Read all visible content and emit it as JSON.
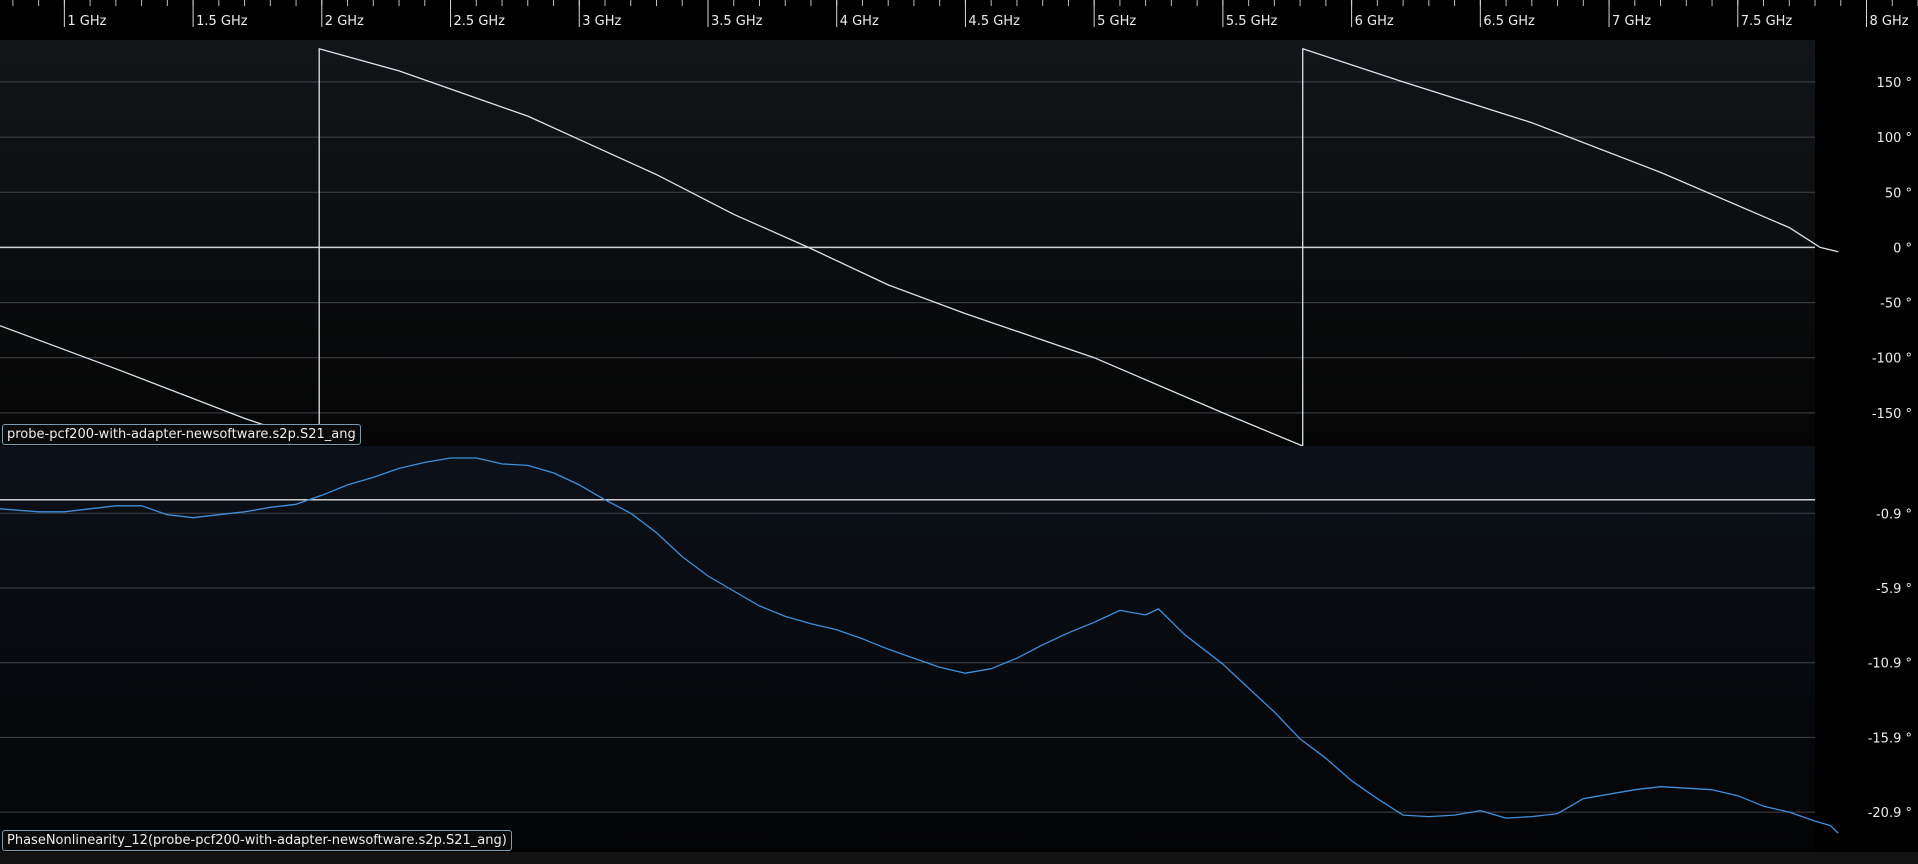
{
  "colors": {
    "background": "#000000",
    "panel1_top": "#121518",
    "panel1_bottom": "#050505",
    "panel2_top": "#0c1119",
    "panel2_bottom": "#030405",
    "gridline": "#3e434a",
    "reference_line": "#cfcfcf",
    "trace1": "#dbe3ea",
    "trace2": "#3f8fd8",
    "label_border": "#7a9ab0"
  },
  "chart_data": [
    {
      "type": "line",
      "name": "phase-panel",
      "trace_label": "probe-pcf200-with-adapter-newsoftware.s2p.S21_ang",
      "xlim": [
        0.75,
        8.2
      ],
      "ylim": [
        -180,
        188
      ],
      "x_ticks": [
        {
          "value": 1.0,
          "label": "1 GHz"
        },
        {
          "value": 1.5,
          "label": "1.5 GHz"
        },
        {
          "value": 2.0,
          "label": "2 GHz"
        },
        {
          "value": 2.5,
          "label": "2.5 GHz"
        },
        {
          "value": 3.0,
          "label": "3 GHz"
        },
        {
          "value": 3.5,
          "label": "3.5 GHz"
        },
        {
          "value": 4.0,
          "label": "4 GHz"
        },
        {
          "value": 4.5,
          "label": "4.5 GHz"
        },
        {
          "value": 5.0,
          "label": "5 GHz"
        },
        {
          "value": 5.5,
          "label": "5.5 GHz"
        },
        {
          "value": 6.0,
          "label": "6 GHz"
        },
        {
          "value": 6.5,
          "label": "6.5 GHz"
        },
        {
          "value": 7.0,
          "label": "7 GHz"
        },
        {
          "value": 7.5,
          "label": "7.5 GHz"
        },
        {
          "value": 8.0,
          "label": "8 GHz"
        }
      ],
      "y_ticks": [
        {
          "value": 150,
          "label": "150 °"
        },
        {
          "value": 100,
          "label": "100 °"
        },
        {
          "value": 50,
          "label": "50 °"
        },
        {
          "value": 0,
          "label": "0 °"
        },
        {
          "value": -50,
          "label": "-50 °"
        },
        {
          "value": -100,
          "label": "-100 °"
        },
        {
          "value": -150,
          "label": "-150 °"
        }
      ],
      "reference_y": 0,
      "series": [
        {
          "points": [
            [
              0.75,
              -71
            ],
            [
              1.2,
              -110
            ],
            [
              1.7,
              -155
            ],
            [
              1.99,
              -178
            ],
            [
              1.99,
              180
            ],
            [
              2.3,
              160
            ],
            [
              2.8,
              119
            ],
            [
              3.3,
              66
            ],
            [
              3.6,
              30
            ],
            [
              3.89,
              0
            ],
            [
              4.2,
              -34
            ],
            [
              4.5,
              -60
            ],
            [
              5.0,
              -100
            ],
            [
              5.5,
              -150
            ],
            [
              5.81,
              -180
            ],
            [
              5.81,
              180
            ],
            [
              6.2,
              150
            ],
            [
              6.7,
              113
            ],
            [
              7.2,
              68
            ],
            [
              7.7,
              18
            ],
            [
              7.82,
              0
            ],
            [
              7.89,
              -4
            ]
          ]
        }
      ]
    },
    {
      "type": "line",
      "name": "phase-nonlinearity-panel",
      "trace_label": "PhaseNonlinearity_12(probe-pcf200-with-adapter-newsoftware.s2p.S21_ang)",
      "xlim": [
        0.75,
        8.2
      ],
      "ylim": [
        -23.5,
        3.6
      ],
      "y_ticks": [
        {
          "value": -0.9,
          "label": "-0.9 °"
        },
        {
          "value": -5.9,
          "label": "-5.9 °"
        },
        {
          "value": -10.9,
          "label": "-10.9 °"
        },
        {
          "value": -15.9,
          "label": "-15.9 °"
        },
        {
          "value": -20.9,
          "label": "-20.9 °"
        }
      ],
      "reference_y": 0,
      "series": [
        {
          "points": [
            [
              0.75,
              -0.6
            ],
            [
              0.9,
              -0.8
            ],
            [
              1.0,
              -0.8
            ],
            [
              1.1,
              -0.6
            ],
            [
              1.2,
              -0.4
            ],
            [
              1.3,
              -0.4
            ],
            [
              1.4,
              -1.0
            ],
            [
              1.5,
              -1.2
            ],
            [
              1.6,
              -1.0
            ],
            [
              1.7,
              -0.8
            ],
            [
              1.8,
              -0.5
            ],
            [
              1.9,
              -0.3
            ],
            [
              2.0,
              0.3
            ],
            [
              2.1,
              1.0
            ],
            [
              2.2,
              1.5
            ],
            [
              2.3,
              2.1
            ],
            [
              2.4,
              2.5
            ],
            [
              2.5,
              2.8
            ],
            [
              2.6,
              2.8
            ],
            [
              2.7,
              2.4
            ],
            [
              2.8,
              2.3
            ],
            [
              2.9,
              1.8
            ],
            [
              3.0,
              1.0
            ],
            [
              3.1,
              0.0
            ],
            [
              3.2,
              -0.9
            ],
            [
              3.3,
              -2.2
            ],
            [
              3.4,
              -3.8
            ],
            [
              3.5,
              -5.1
            ],
            [
              3.6,
              -6.1
            ],
            [
              3.7,
              -7.1
            ],
            [
              3.8,
              -7.8
            ],
            [
              3.9,
              -8.3
            ],
            [
              4.0,
              -8.7
            ],
            [
              4.1,
              -9.3
            ],
            [
              4.2,
              -10.0
            ],
            [
              4.3,
              -10.6
            ],
            [
              4.4,
              -11.2
            ],
            [
              4.5,
              -11.6
            ],
            [
              4.6,
              -11.3
            ],
            [
              4.7,
              -10.6
            ],
            [
              4.8,
              -9.7
            ],
            [
              4.9,
              -8.9
            ],
            [
              5.0,
              -8.2
            ],
            [
              5.1,
              -7.4
            ],
            [
              5.2,
              -7.7
            ],
            [
              5.25,
              -7.3
            ],
            [
              5.35,
              -9.0
            ],
            [
              5.5,
              -11.0
            ],
            [
              5.6,
              -12.6
            ],
            [
              5.7,
              -14.2
            ],
            [
              5.8,
              -16.0
            ],
            [
              5.9,
              -17.3
            ],
            [
              6.0,
              -18.8
            ],
            [
              6.1,
              -20.0
            ],
            [
              6.2,
              -21.1
            ],
            [
              6.3,
              -21.2
            ],
            [
              6.4,
              -21.1
            ],
            [
              6.5,
              -20.8
            ],
            [
              6.6,
              -21.3
            ],
            [
              6.7,
              -21.2
            ],
            [
              6.8,
              -21.0
            ],
            [
              6.9,
              -20.0
            ],
            [
              7.0,
              -19.7
            ],
            [
              7.1,
              -19.4
            ],
            [
              7.2,
              -19.2
            ],
            [
              7.3,
              -19.3
            ],
            [
              7.4,
              -19.4
            ],
            [
              7.5,
              -19.8
            ],
            [
              7.6,
              -20.5
            ],
            [
              7.7,
              -20.9
            ],
            [
              7.8,
              -21.5
            ],
            [
              7.86,
              -21.8
            ],
            [
              7.89,
              -22.3
            ]
          ]
        }
      ]
    }
  ]
}
